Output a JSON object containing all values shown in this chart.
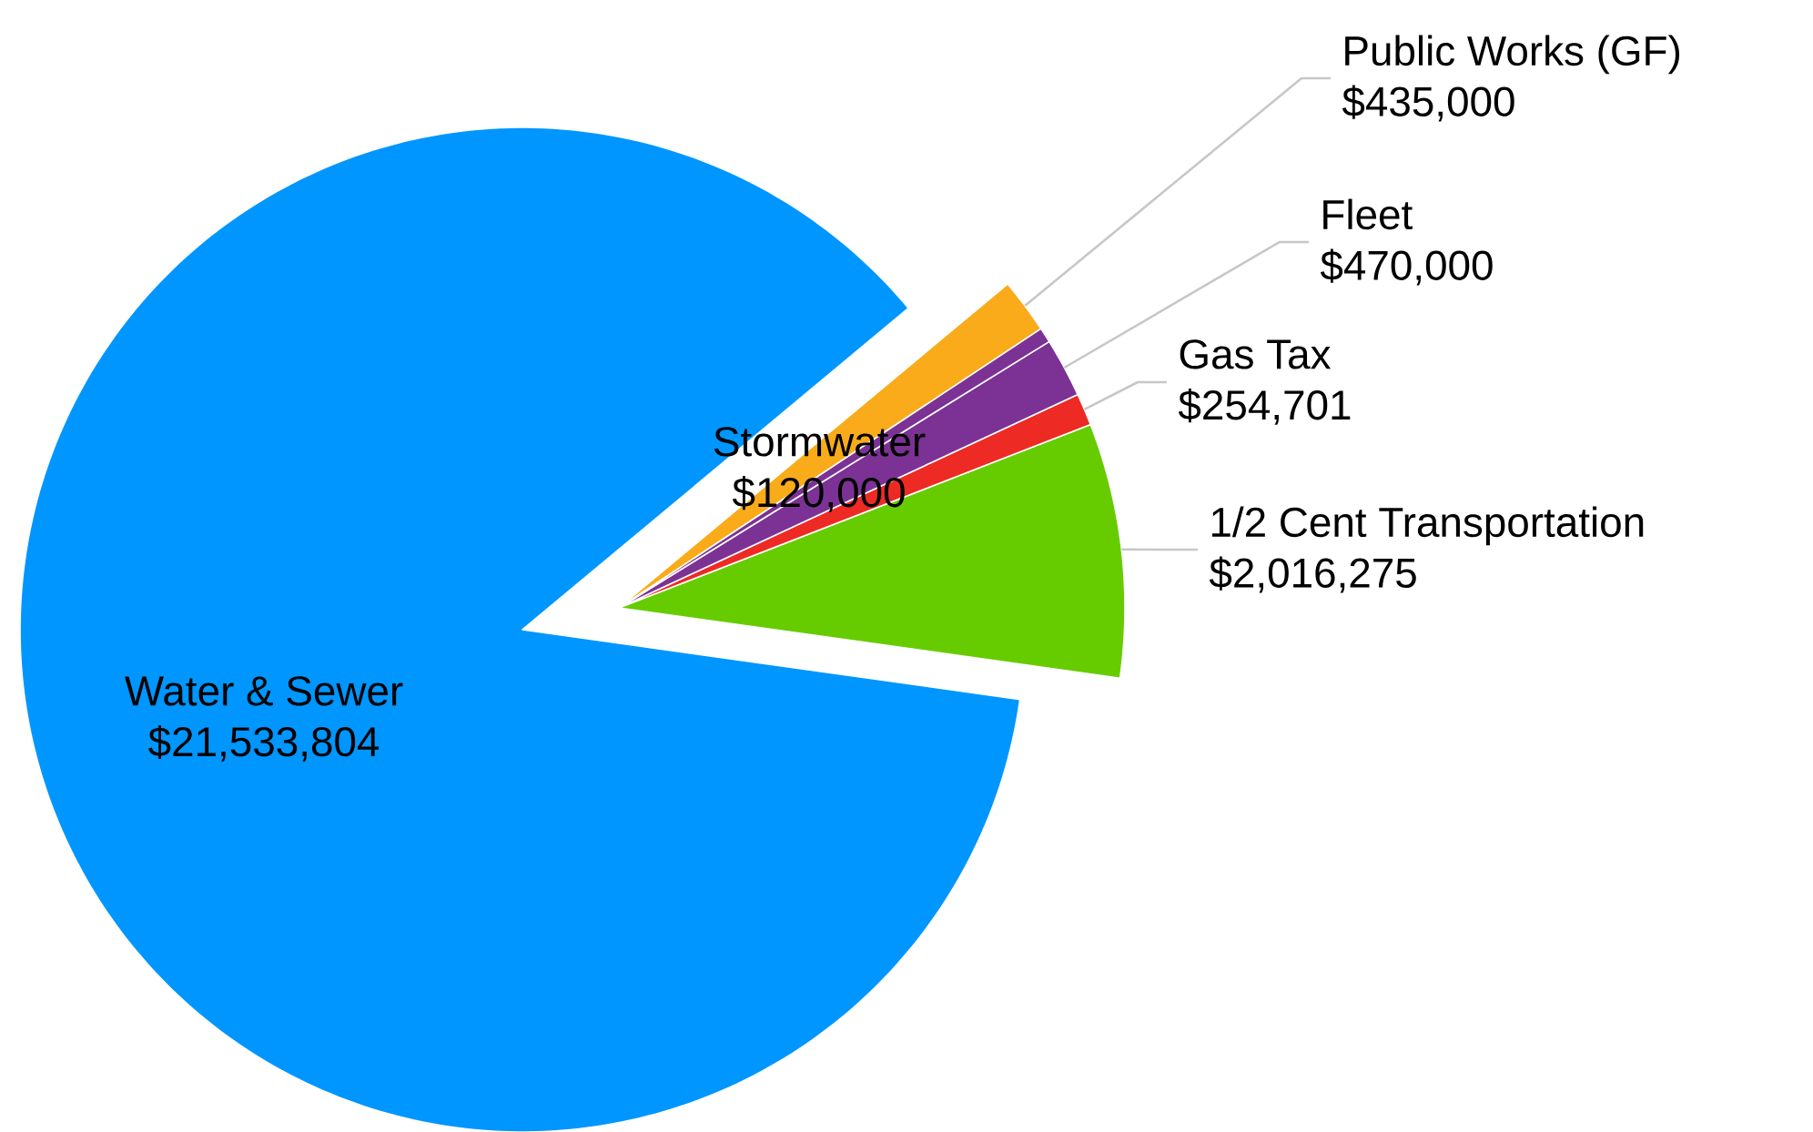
{
  "chart_data": {
    "type": "pie",
    "categories": [
      "Water & Sewer",
      "1/2 Cent Transportation",
      "Gas Tax",
      "Fleet",
      "Stormwater",
      "Public Works (GF)"
    ],
    "values": [
      21533804,
      2016275,
      254701,
      470000,
      120000,
      435000
    ],
    "value_labels": [
      "$21,533,804",
      "$2,016,275",
      "$254,701",
      "$470,000",
      "$120,000",
      "$435,000"
    ],
    "colors": [
      "#0096ff",
      "#66cc00",
      "#ee2a24",
      "#7b3294",
      "#7b3294",
      "#f9ab1a"
    ]
  }
}
